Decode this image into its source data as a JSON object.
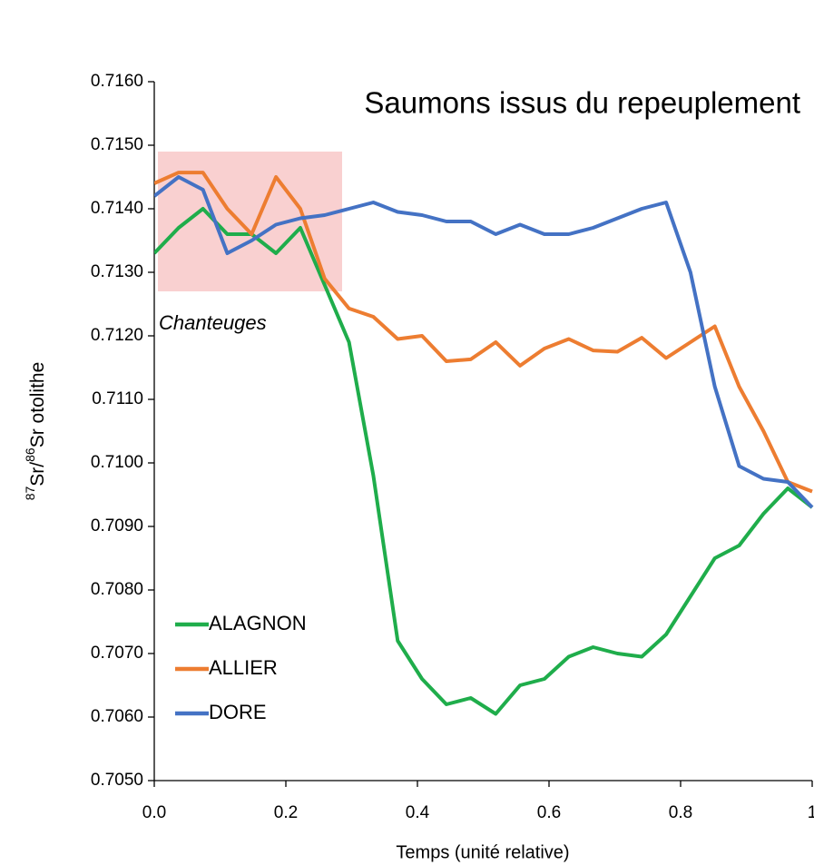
{
  "chart_data": {
    "type": "line",
    "title": "Saumons issus du repeuplement",
    "x_label": "Temps (unité relative)",
    "y_label": [
      "87",
      "Sr/",
      "86",
      "Sr otolithe"
    ],
    "x": [
      0,
      0.037,
      0.074,
      0.111,
      0.148,
      0.185,
      0.222,
      0.259,
      0.296,
      0.333,
      0.37,
      0.407,
      0.444,
      0.481,
      0.519,
      0.556,
      0.593,
      0.63,
      0.667,
      0.704,
      0.741,
      0.778,
      0.815,
      0.852,
      0.889,
      0.926,
      0.963,
      1
    ],
    "series": [
      {
        "name": "ALAGNON",
        "color": "#1fad4b",
        "values": [
          0.7133,
          0.7137,
          0.714,
          0.7136,
          0.7136,
          0.7133,
          0.7137,
          0.7128,
          0.7119,
          0.7098,
          0.7072,
          0.7066,
          0.7062,
          0.7063,
          0.70605,
          0.7065,
          0.7066,
          0.70695,
          0.7071,
          0.707,
          0.70695,
          0.7073,
          0.7079,
          0.7085,
          0.7087,
          0.7092,
          0.7096,
          0.7093
        ]
      },
      {
        "name": "ALLIER",
        "color": "#ed7d31",
        "values": [
          0.7144,
          0.71457,
          0.71457,
          0.714,
          0.7136,
          0.7145,
          0.714,
          0.7129,
          0.71243,
          0.7123,
          0.71195,
          0.712,
          0.7116,
          0.71163,
          0.7119,
          0.71153,
          0.7118,
          0.71195,
          0.71177,
          0.71175,
          0.71197,
          0.71165,
          0.7119,
          0.71215,
          0.7112,
          0.7105,
          0.7097,
          0.70955
        ]
      },
      {
        "name": "DORE",
        "color": "#4472c4",
        "values": [
          0.7142,
          0.7145,
          0.7143,
          0.7133,
          0.7135,
          0.71375,
          0.71385,
          0.7139,
          0.714,
          0.7141,
          0.71395,
          0.7139,
          0.7138,
          0.7138,
          0.7136,
          0.71375,
          0.7136,
          0.7136,
          0.7137,
          0.71385,
          0.714,
          0.7141,
          0.713,
          0.7112,
          0.70995,
          0.70975,
          0.7097,
          0.7093
        ]
      }
    ],
    "highlight": {
      "label": "Chanteuges",
      "xlim": [
        0,
        0.28
      ],
      "ylim": [
        0.7127,
        0.7149
      ],
      "color": "#f8c8c8"
    },
    "xlim": [
      0,
      1
    ],
    "ylim": [
      0.705,
      0.716
    ],
    "xticks": [
      {
        "value": 0,
        "label": "0.0"
      },
      0.2,
      0.4,
      0.6,
      0.8,
      1
    ],
    "yticks": [
      {
        "value": 0.705,
        "label": "0.7050"
      },
      {
        "value": 0.706,
        "label": "0.7060"
      },
      {
        "value": 0.707,
        "label": "0.7070"
      },
      {
        "value": 0.708,
        "label": "0.7080"
      },
      {
        "value": 0.709,
        "label": "0.7090"
      },
      {
        "value": 0.71,
        "label": "0.7100"
      },
      {
        "value": 0.711,
        "label": "0.7110"
      },
      {
        "value": 0.712,
        "label": "0.7120"
      },
      {
        "value": 0.713,
        "label": "0.7130"
      },
      {
        "value": 0.714,
        "label": "0.7140"
      },
      {
        "value": 0.715,
        "label": "0.7150"
      },
      {
        "value": 0.716,
        "label": "0.7160"
      }
    ],
    "legend": "lower left"
  }
}
